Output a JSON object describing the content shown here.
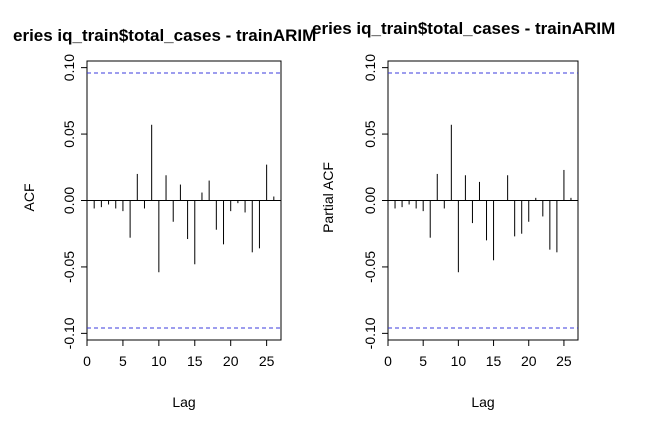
{
  "chart_data": [
    {
      "type": "bar",
      "title": "eries  iq_train$total_cases - trainARIM",
      "xlabel": "Lag",
      "ylabel": "ACF",
      "xlim": [
        0,
        27
      ],
      "ylim": [
        -0.105,
        0.105
      ],
      "x_ticks": [
        "0",
        "5",
        "10",
        "15",
        "20",
        "25"
      ],
      "y_ticks": [
        "-0.10",
        "-0.05",
        "0.00",
        "0.05",
        "0.10"
      ],
      "confidence_bounds": [
        0.096,
        -0.096
      ],
      "colors": {
        "bars": "#000000",
        "bounds": "#3b3bdc",
        "frame": "#000000"
      },
      "x": [
        1,
        2,
        3,
        4,
        5,
        6,
        7,
        8,
        9,
        10,
        11,
        12,
        13,
        14,
        15,
        16,
        17,
        18,
        19,
        20,
        21,
        22,
        23,
        24,
        25,
        26
      ],
      "values": [
        -0.006,
        -0.005,
        -0.003,
        -0.006,
        -0.008,
        -0.028,
        0.02,
        -0.006,
        0.057,
        -0.054,
        0.019,
        -0.016,
        0.012,
        -0.029,
        -0.048,
        0.006,
        0.015,
        -0.022,
        -0.033,
        -0.008,
        -0.002,
        -0.009,
        -0.039,
        -0.036,
        0.027,
        0.003
      ]
    },
    {
      "type": "bar",
      "title": "eries  iq_train$total_cases - trainARIM",
      "xlabel": "Lag",
      "ylabel": "Partial ACF",
      "xlim": [
        0,
        27
      ],
      "ylim": [
        -0.105,
        0.105
      ],
      "x_ticks": [
        "0",
        "5",
        "10",
        "15",
        "20",
        "25"
      ],
      "y_ticks": [
        "-0.10",
        "-0.05",
        "0.00",
        "0.05",
        "0.10"
      ],
      "confidence_bounds": [
        0.096,
        -0.096
      ],
      "colors": {
        "bars": "#000000",
        "bounds": "#3b3bdc",
        "frame": "#000000"
      },
      "x": [
        1,
        2,
        3,
        4,
        5,
        6,
        7,
        8,
        9,
        10,
        11,
        12,
        13,
        14,
        15,
        16,
        17,
        18,
        19,
        20,
        21,
        22,
        23,
        24,
        25,
        26
      ],
      "values": [
        -0.006,
        -0.005,
        -0.003,
        -0.006,
        -0.008,
        -0.028,
        0.02,
        -0.006,
        0.057,
        -0.054,
        0.019,
        -0.017,
        0.014,
        -0.03,
        -0.045,
        0.0,
        0.019,
        -0.027,
        -0.025,
        -0.016,
        0.002,
        -0.012,
        -0.037,
        -0.039,
        0.023,
        0.002
      ]
    }
  ]
}
